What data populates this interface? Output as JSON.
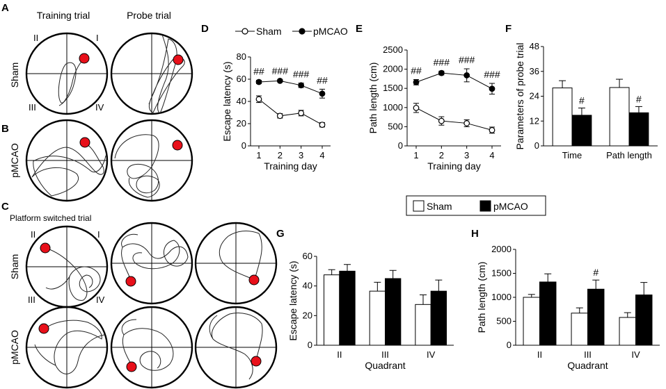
{
  "panels": {
    "A": {
      "letter": "A",
      "col_training": "Training trial",
      "col_probe": "Probe trial",
      "row_label": "Sham",
      "quadrants": [
        "II",
        "I",
        "III",
        "IV"
      ]
    },
    "B": {
      "letter": "B",
      "row_label": "pMCAO"
    },
    "C": {
      "letter": "C",
      "title": "Platform switched trial",
      "row_sham": "Sham",
      "row_pmcao": "pMCAO",
      "quadrants": [
        "II",
        "I",
        "III",
        "IV"
      ]
    }
  },
  "legend_line": {
    "sham": "Sham",
    "pmcao": "pMCAO"
  },
  "legend_bar": {
    "sham": "Sham",
    "pmcao": "pMCAO"
  },
  "colors": {
    "sham": "#ffffff",
    "pmcao": "#000000",
    "platform": "#e8101a"
  },
  "chart_data": [
    {
      "id": "D",
      "letter": "D",
      "type": "line",
      "xlabel": "Training day",
      "ylabel": "Escape latency (s)",
      "x": [
        1,
        2,
        3,
        4
      ],
      "xticks": [
        "1",
        "2",
        "3",
        "4"
      ],
      "ylim": [
        0,
        80
      ],
      "yticks": [
        "0",
        "20",
        "40",
        "60",
        "80"
      ],
      "series": [
        {
          "name": "Sham",
          "values": [
            42,
            27,
            29.5,
            19
          ],
          "errors": [
            3,
            2,
            2.5,
            2
          ],
          "marker": "open"
        },
        {
          "name": "pMCAO",
          "values": [
            57.5,
            58.5,
            54.5,
            47
          ],
          "errors": [
            1.5,
            1,
            2,
            4
          ],
          "marker": "filled",
          "annotations": [
            "##",
            "###",
            "###",
            "##"
          ]
        }
      ]
    },
    {
      "id": "E",
      "letter": "E",
      "type": "line",
      "xlabel": "Training day",
      "ylabel": "Path length (cm)",
      "x": [
        1,
        2,
        3,
        4
      ],
      "xticks": [
        "1",
        "2",
        "3",
        "4"
      ],
      "ylim": [
        0,
        2500
      ],
      "yticks": [
        "0",
        "500",
        "1000",
        "1500",
        "2000",
        "2500"
      ],
      "series": [
        {
          "name": "Sham",
          "values": [
            990,
            650,
            590,
            410
          ],
          "errors": [
            120,
            110,
            90,
            80
          ],
          "marker": "open"
        },
        {
          "name": "pMCAO",
          "values": [
            1660,
            1900,
            1840,
            1490
          ],
          "errors": [
            70,
            50,
            170,
            140
          ],
          "marker": "filled",
          "annotations": [
            "##",
            "###",
            "###",
            "###"
          ]
        }
      ]
    },
    {
      "id": "F",
      "letter": "F",
      "type": "bar",
      "xlabel": "",
      "ylabel": "Parameters of probe trial",
      "categories": [
        "Time",
        "Path length"
      ],
      "ylim": [
        0,
        48
      ],
      "yticks": [
        "0",
        "12",
        "24",
        "36",
        "48"
      ],
      "series": [
        {
          "name": "Sham",
          "values": [
            28,
            28.2
          ],
          "errors": [
            3.5,
            4
          ]
        },
        {
          "name": "pMCAO",
          "values": [
            14.8,
            16
          ],
          "errors": [
            3.5,
            3
          ],
          "annotations": [
            "#",
            "#"
          ]
        }
      ]
    },
    {
      "id": "G",
      "letter": "G",
      "type": "bar",
      "xlabel": "Quadrant",
      "ylabel": "Escape latency (s)",
      "categories": [
        "II",
        "III",
        "IV"
      ],
      "ylim": [
        0,
        60
      ],
      "yticks": [
        "0",
        "20",
        "40",
        "60"
      ],
      "series": [
        {
          "name": "Sham",
          "values": [
            47.5,
            36.5,
            27.5
          ],
          "errors": [
            3.5,
            6,
            6.5
          ]
        },
        {
          "name": "pMCAO",
          "values": [
            50,
            45,
            36.5
          ],
          "errors": [
            4.5,
            5.5,
            7.5
          ],
          "annotations": [
            "",
            "",
            ""
          ]
        }
      ]
    },
    {
      "id": "H",
      "letter": "H",
      "type": "bar",
      "xlabel": "Quadrant",
      "ylabel": "Path length (cm)",
      "categories": [
        "II",
        "III",
        "IV"
      ],
      "ylim": [
        0,
        2000
      ],
      "yticks": [
        "0",
        "500",
        "1000",
        "1500",
        "2000"
      ],
      "series": [
        {
          "name": "Sham",
          "values": [
            1000,
            670,
            580
          ],
          "errors": [
            60,
            110,
            100
          ]
        },
        {
          "name": "pMCAO",
          "values": [
            1320,
            1170,
            1050
          ],
          "errors": [
            170,
            190,
            260
          ],
          "annotations": [
            "",
            "#",
            ""
          ]
        }
      ]
    }
  ]
}
